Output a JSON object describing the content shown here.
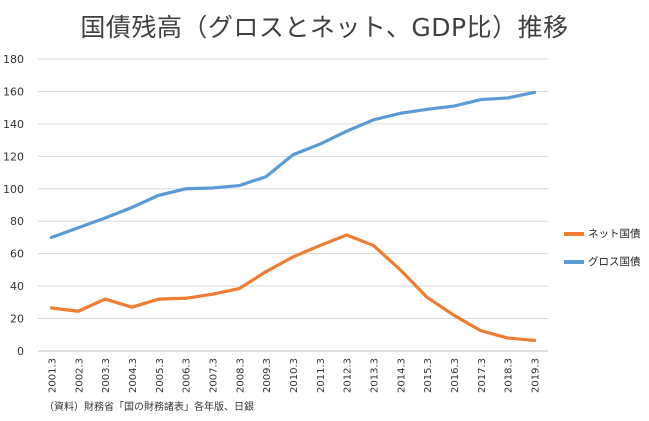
{
  "title": "国債残高（グロスとネット、GDP比）推移",
  "source": "（資料）財務省「国の財務諸表」各年版、日銀",
  "chart_data": {
    "type": "line",
    "categories": [
      "2001.3",
      "2002.3",
      "2003.3",
      "2004.3",
      "2005.3",
      "2006.3",
      "2007.3",
      "2008.3",
      "2009.3",
      "2010.3",
      "2011.3",
      "2012.3",
      "2013.3",
      "2014.3",
      "2015.3",
      "2016.3",
      "2017.3",
      "2018.3",
      "2019.3"
    ],
    "ylim": [
      0,
      180
    ],
    "yticks": [
      0,
      20,
      40,
      60,
      80,
      100,
      120,
      140,
      160,
      180
    ],
    "grid": true,
    "legend_position": "right",
    "series": [
      {
        "name": "ネット国債",
        "color": "#ED7D31",
        "values": [
          26.5,
          24.5,
          32,
          27,
          32,
          32.5,
          35,
          38.5,
          49,
          58,
          65,
          71.5,
          65,
          50,
          33,
          22,
          12.5,
          8,
          6.5
        ]
      },
      {
        "name": "グロス国債",
        "color": "#5B9BD5",
        "values": [
          70,
          76,
          82,
          88.5,
          96,
          100,
          100.5,
          102,
          107.5,
          121,
          127.5,
          135.5,
          142.5,
          146.5,
          149,
          151,
          155,
          156,
          159.5
        ]
      }
    ]
  }
}
